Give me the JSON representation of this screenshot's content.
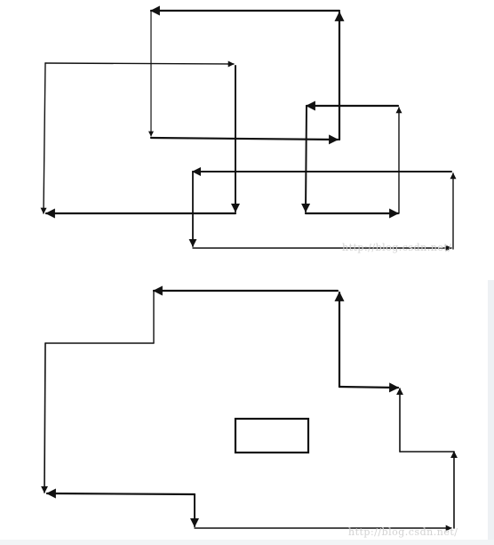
{
  "watermarks": {
    "top": "http://blog.csdn.net/",
    "bottom": "http://blog.csdn.net/"
  },
  "colors": {
    "stroke": "#111111",
    "thin_stroke": "#444444",
    "watermark": "#d2d2d2",
    "side_strip": "#eef1f4"
  }
}
